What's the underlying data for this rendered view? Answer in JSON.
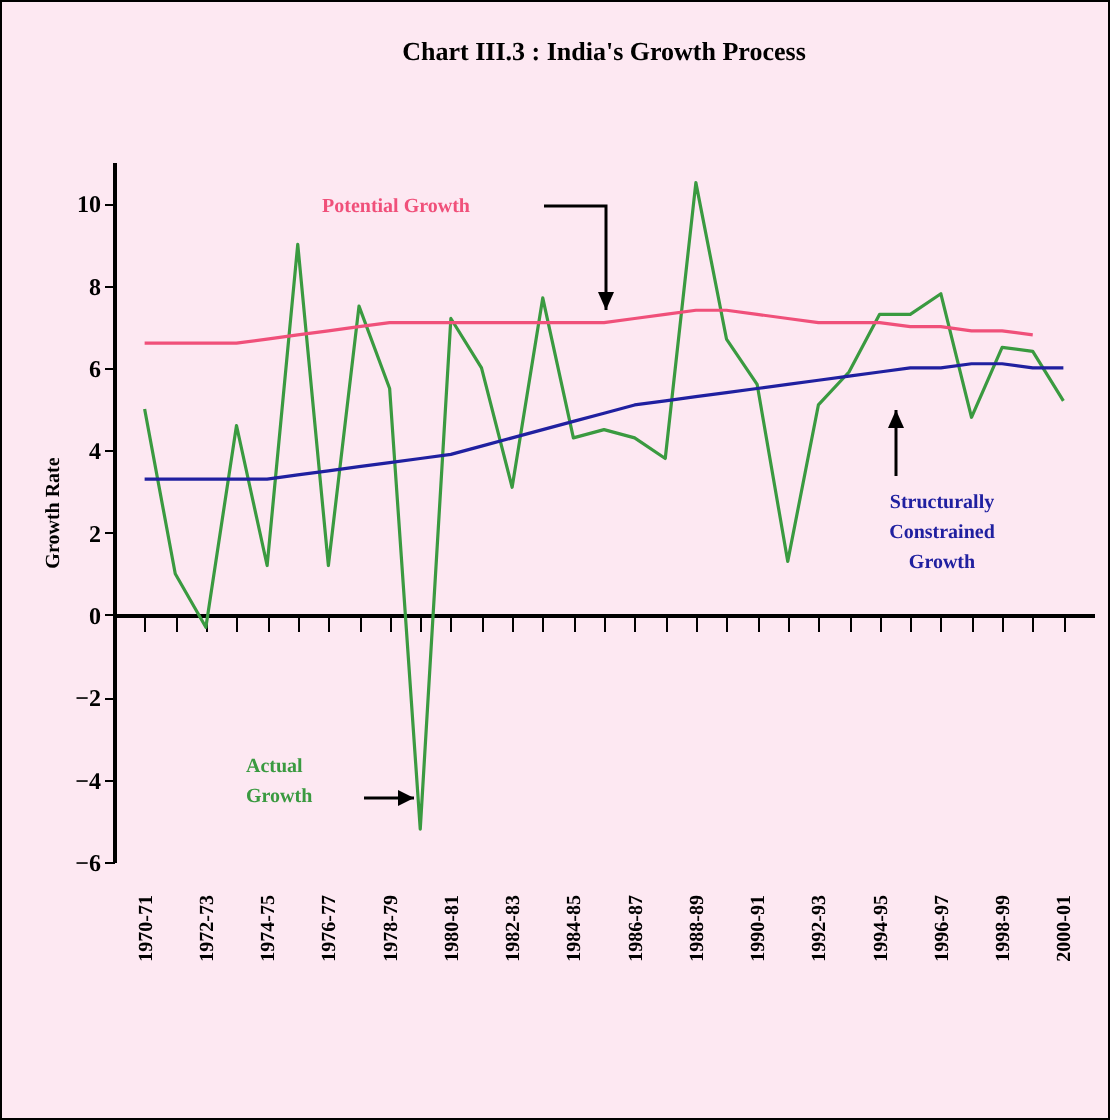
{
  "chart_data": {
    "type": "line",
    "title": "Chart III.3 : India's Growth Process",
    "ylabel": "Growth Rate",
    "categories": [
      "1970-71",
      null,
      "1972-73",
      null,
      "1974-75",
      null,
      "1976-77",
      null,
      "1978-79",
      null,
      "1980-81",
      null,
      "1982-83",
      null,
      "1984-85",
      null,
      "1986-87",
      null,
      "1988-89",
      null,
      "1990-91",
      null,
      "1992-93",
      null,
      "1994-95",
      null,
      "1996-97",
      null,
      "1998-99",
      null,
      "2000-01"
    ],
    "ylim": [
      -6,
      11
    ],
    "yticks": [
      -6,
      -4,
      -2,
      0,
      2,
      4,
      6,
      8,
      10
    ],
    "legend": false,
    "series": [
      {
        "name": "Actual Growth",
        "color": "#3a9a40",
        "values": [
          5.0,
          1.0,
          -0.3,
          4.6,
          1.2,
          9.0,
          1.2,
          7.5,
          5.5,
          -5.2,
          7.2,
          6.0,
          3.1,
          7.7,
          4.3,
          4.5,
          4.3,
          3.8,
          10.5,
          6.7,
          5.6,
          1.3,
          5.1,
          5.9,
          7.3,
          7.3,
          7.8,
          4.8,
          6.5,
          6.4,
          5.2
        ]
      },
      {
        "name": "Potential Growth",
        "color": "#f0507a",
        "values": [
          6.6,
          6.6,
          6.6,
          6.6,
          6.7,
          6.8,
          6.9,
          7.0,
          7.1,
          7.1,
          7.1,
          7.1,
          7.1,
          7.1,
          7.1,
          7.1,
          7.2,
          7.3,
          7.4,
          7.4,
          7.3,
          7.2,
          7.1,
          7.1,
          7.1,
          7.0,
          7.0,
          6.9,
          6.9,
          6.8,
          null
        ]
      },
      {
        "name": "Structurally Constrained Growth",
        "color": "#2020a0",
        "values": [
          3.3,
          3.3,
          3.3,
          3.3,
          3.3,
          3.4,
          3.5,
          3.6,
          3.7,
          3.8,
          3.9,
          4.1,
          4.3,
          4.5,
          4.7,
          4.9,
          5.1,
          5.2,
          5.3,
          5.4,
          5.5,
          5.6,
          5.7,
          5.8,
          5.9,
          6.0,
          6.0,
          6.1,
          6.1,
          6.0,
          6.0
        ]
      }
    ]
  }
}
